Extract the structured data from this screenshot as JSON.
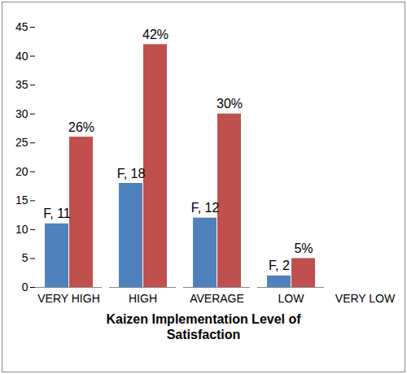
{
  "chart_data": {
    "type": "bar",
    "x_label": "Kaizen Implementation Level of Satisfaction",
    "categories": [
      "VERY HIGH",
      "HIGH",
      "AVERAGE",
      "LOW",
      "VERY LOW"
    ],
    "series": [
      {
        "color": "#4f81bd",
        "values": [
          11,
          18,
          12,
          2,
          null
        ],
        "value_labels": [
          "F, 11",
          "F, 18",
          "F, 12",
          "F, 2",
          null
        ]
      },
      {
        "color": "#c0504d",
        "values": [
          26,
          42,
          30,
          5,
          null
        ],
        "value_labels": [
          "26%",
          "42%",
          "30%",
          "5%",
          null
        ]
      }
    ],
    "ylim": [
      0,
      45
    ],
    "yticks": [
      0,
      5,
      10,
      15,
      20,
      25,
      30,
      35,
      40,
      45
    ],
    "grid": false,
    "data_labels": true
  }
}
